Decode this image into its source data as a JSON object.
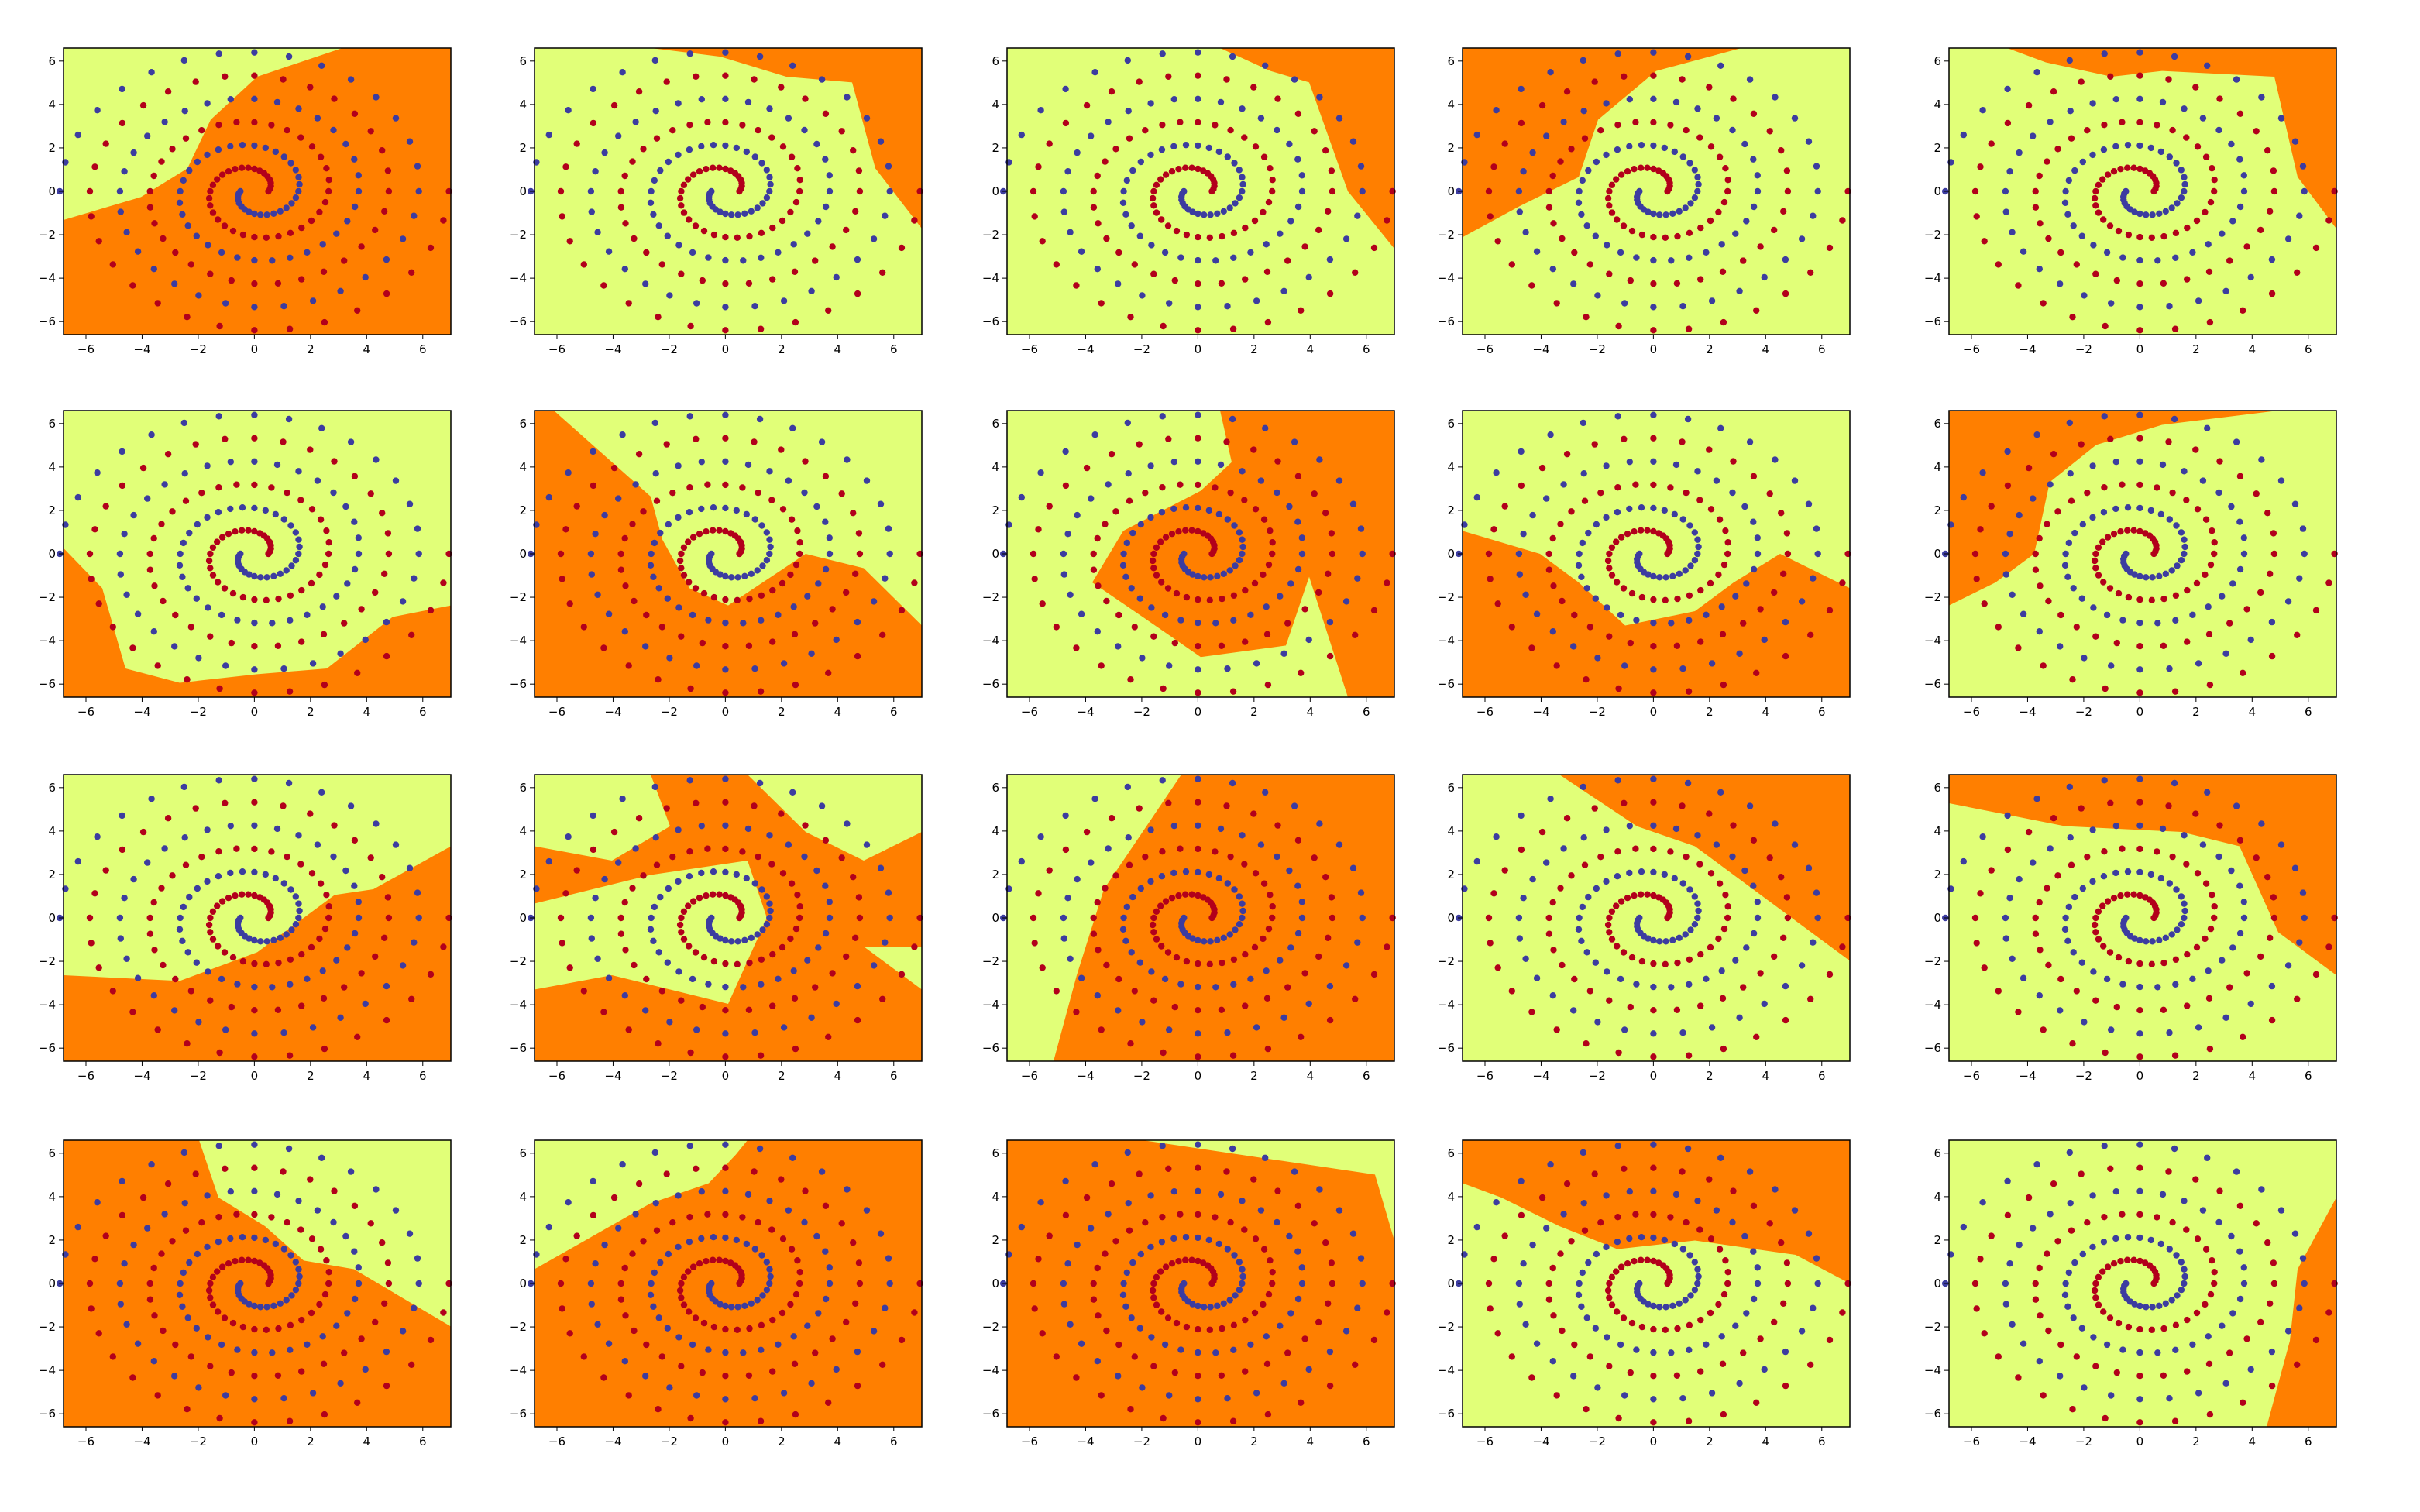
{
  "figure": {
    "layout": "grid of 4 rows by 5 columns of decision-boundary scatter plots",
    "colors": {
      "region_a": "#ff7f00",
      "region_b": "#e1ff78",
      "class_red": "#b2001b",
      "class_blue": "#3c3ca0",
      "axes": "#000000",
      "background": "#ffffff"
    }
  },
  "chart_data": {
    "type": "scatter",
    "subplot_count": 20,
    "grid": {
      "rows": 4,
      "cols": 5
    },
    "x_ticks": [
      -6,
      -4,
      -2,
      0,
      2,
      4,
      6
    ],
    "y_ticks": [
      -6,
      -4,
      -2,
      0,
      2,
      4,
      6
    ],
    "xlim": [
      -6.8,
      7.0
    ],
    "ylim": [
      -6.6,
      6.6
    ],
    "x_tick_labels": [
      "−6",
      "−4",
      "−2",
      "0",
      "2",
      "4",
      "6"
    ],
    "y_tick_labels": [
      "−6",
      "−4",
      "−2",
      "0",
      "2",
      "4",
      "6"
    ],
    "spiral": {
      "description": "two interleaved spirals, 97 points each",
      "points_per_class": 97,
      "turns_radius_max": 6.5,
      "series": [
        {
          "name": "red",
          "color": "#b2001b",
          "phase_deg": 0
        },
        {
          "name": "blue",
          "color": "#3c3ca0",
          "phase_deg": 180
        }
      ]
    },
    "boundaries": [
      {
        "subplot": 1,
        "region_a_corners": "outer-right",
        "shape": "diagonal band lower-left to upper-right"
      },
      {
        "subplot": 2,
        "region_a_corners": "top-right",
        "shape": "curved top-right lobe"
      },
      {
        "subplot": 3,
        "region_a_corners": "top-right",
        "shape": "small top-right lobe"
      },
      {
        "subplot": 4,
        "region_a_corners": "top-left",
        "shape": "top-left diagonal"
      },
      {
        "subplot": 5,
        "region_a_corners": "top-right",
        "shape": "thin top band"
      },
      {
        "subplot": 6,
        "region_a_corners": "top",
        "shape": "wide wavy top region"
      },
      {
        "subplot": 7,
        "region_a_corners": "top-right",
        "shape": "diagonal with wavy center"
      },
      {
        "subplot": 8,
        "region_a_corners": "center",
        "shape": "central blob with bottom-right wedge"
      },
      {
        "subplot": 9,
        "region_a_corners": "top",
        "shape": "top with dip to center"
      },
      {
        "subplot": 10,
        "region_a_corners": "top-left",
        "shape": "top-left corner"
      },
      {
        "subplot": 11,
        "region_a_corners": "bottom-right",
        "shape": "lower wavy region"
      },
      {
        "subplot": 12,
        "region_a_corners": "mixed",
        "shape": "patchy regions"
      },
      {
        "subplot": 13,
        "region_a_corners": "right",
        "shape": "large right region"
      },
      {
        "subplot": 14,
        "region_a_corners": "top-right",
        "shape": "top-right diagonal"
      },
      {
        "subplot": 15,
        "region_a_corners": "center",
        "shape": "broad central region"
      },
      {
        "subplot": 16,
        "region_a_corners": "bottom-right",
        "shape": "diagonal band"
      },
      {
        "subplot": 17,
        "region_a_corners": "bottom-left",
        "shape": "bottom-left diagonal"
      },
      {
        "subplot": 18,
        "region_a_corners": "most",
        "shape": "most of area, top-right light"
      },
      {
        "subplot": 19,
        "region_a_corners": "top",
        "shape": "top with wavy bottom"
      },
      {
        "subplot": 20,
        "region_a_corners": "right edge",
        "shape": "thin right sliver"
      }
    ]
  }
}
